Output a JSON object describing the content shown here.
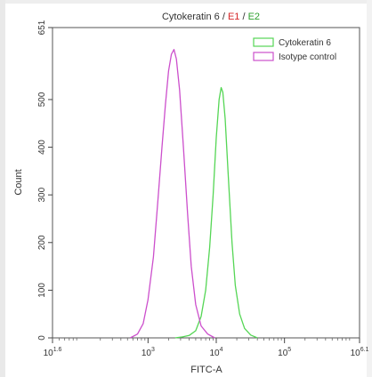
{
  "chart_data": {
    "type": "line",
    "title": {
      "parts": [
        {
          "text": "Cytokeratin 6 / ",
          "color": "#333333"
        },
        {
          "text": "E1",
          "color": "#d62728"
        },
        {
          "text": " / ",
          "color": "#333333"
        },
        {
          "text": "E2",
          "color": "#2ca02c"
        }
      ]
    },
    "xlabel": "FITC-A",
    "ylabel": "Count",
    "x_scale": "log10",
    "xlim": [
      39.8,
      1259000
    ],
    "ylim": [
      0,
      651
    ],
    "x_ticks": [
      {
        "value": 39.8,
        "base": "10",
        "exp": "1.6"
      },
      {
        "value": 1000,
        "base": "10",
        "exp": "3"
      },
      {
        "value": 10000,
        "base": "10",
        "exp": "4"
      },
      {
        "value": 100000,
        "base": "10",
        "exp": "5"
      },
      {
        "value": 1259000,
        "base": "10",
        "exp": "6.1"
      }
    ],
    "y_ticks": [
      {
        "value": 0,
        "label": "0"
      },
      {
        "value": 100,
        "label": "100"
      },
      {
        "value": 200,
        "label": "200"
      },
      {
        "value": 300,
        "label": "300"
      },
      {
        "value": 400,
        "label": "400"
      },
      {
        "value": 500,
        "label": "500"
      },
      {
        "value": 651,
        "label": "651"
      }
    ],
    "legend": "top-right",
    "grid": false,
    "series": [
      {
        "name": "Cytokeratin 6",
        "color": "#55d655",
        "points": [
          [
            2500,
            0
          ],
          [
            3200,
            2
          ],
          [
            4000,
            5
          ],
          [
            5000,
            15
          ],
          [
            6000,
            45
          ],
          [
            7000,
            100
          ],
          [
            8000,
            190
          ],
          [
            9000,
            300
          ],
          [
            10000,
            420
          ],
          [
            11000,
            500
          ],
          [
            11800,
            525
          ],
          [
            12500,
            515
          ],
          [
            13500,
            460
          ],
          [
            15000,
            340
          ],
          [
            17000,
            200
          ],
          [
            19000,
            110
          ],
          [
            22000,
            50
          ],
          [
            26000,
            20
          ],
          [
            32000,
            6
          ],
          [
            40000,
            0
          ]
        ]
      },
      {
        "name": "Isotype control",
        "color": "#cc4fcc",
        "points": [
          [
            550,
            0
          ],
          [
            700,
            8
          ],
          [
            850,
            30
          ],
          [
            1000,
            80
          ],
          [
            1200,
            170
          ],
          [
            1400,
            290
          ],
          [
            1600,
            400
          ],
          [
            1800,
            490
          ],
          [
            2000,
            560
          ],
          [
            2200,
            595
          ],
          [
            2400,
            605
          ],
          [
            2600,
            585
          ],
          [
            2900,
            520
          ],
          [
            3300,
            400
          ],
          [
            3800,
            260
          ],
          [
            4300,
            150
          ],
          [
            5000,
            70
          ],
          [
            6000,
            25
          ],
          [
            7500,
            8
          ],
          [
            9500,
            0
          ]
        ]
      }
    ]
  }
}
